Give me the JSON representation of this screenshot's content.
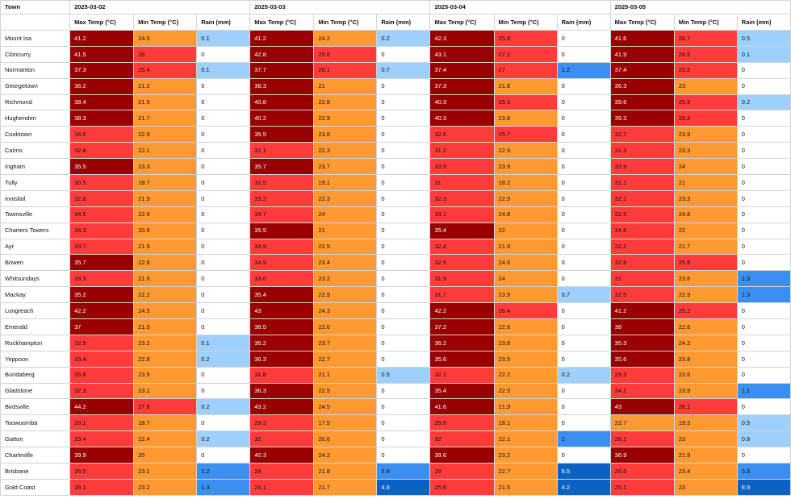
{
  "table": {
    "town_header": "Town",
    "dates": [
      "2025-03-02",
      "2025-03-03",
      "2025-03-04",
      "2025-03-05"
    ],
    "metrics": [
      "Max Temp (°C)",
      "Min Temp (°C)",
      "Rain (mm)"
    ],
    "colors": {
      "very_hot": "#990000",
      "hot": "#ff3b3b",
      "warm": "#ff9a33",
      "mild": "#ffffff",
      "rain_none": "#ffffff",
      "rain_light": "#9fd0fb",
      "rain_moderate": "#3b8ff0",
      "rain_heavy": "#0b61c4"
    },
    "rows": [
      {
        "town": "Mount Isa",
        "cells": [
          "41.2",
          "24.5",
          "0.1",
          "41.2",
          "24.2",
          "0.2",
          "42.3",
          "25.8",
          "0",
          "41.6",
          "26.7",
          "0.5"
        ]
      },
      {
        "town": "Cloncurry",
        "cells": [
          "41.5",
          "26",
          "0",
          "42.8",
          "25.6",
          "0",
          "43.1",
          "27.2",
          "0",
          "41.9",
          "26.5",
          "0.1"
        ]
      },
      {
        "town": "Normanton",
        "cells": [
          "37.3",
          "25.4",
          "0.1",
          "37.7",
          "26.1",
          "0.7",
          "37.4",
          "27",
          "1.2",
          "37.4",
          "25.5",
          "0"
        ]
      },
      {
        "town": "Georgetown",
        "cells": [
          "36.2",
          "21.2",
          "0",
          "38.3",
          "21",
          "0",
          "37.3",
          "21.8",
          "0",
          "36.3",
          "23",
          "0"
        ]
      },
      {
        "town": "Richmond",
        "cells": [
          "38.4",
          "21.5",
          "0",
          "40.8",
          "22.8",
          "0",
          "40.3",
          "25.3",
          "0",
          "39.6",
          "25.9",
          "0.2"
        ]
      },
      {
        "town": "Hughenden",
        "cells": [
          "38.3",
          "21.7",
          "0",
          "40.2",
          "22.9",
          "0",
          "40.3",
          "23.8",
          "0",
          "39.3",
          "26.4",
          "0"
        ]
      },
      {
        "town": "Cooktown",
        "cells": [
          "34.6",
          "22.9",
          "0",
          "35.5",
          "23.8",
          "0",
          "32.6",
          "25.7",
          "0",
          "32.7",
          "23.9",
          "0"
        ]
      },
      {
        "town": "Cairns",
        "cells": [
          "32.8",
          "22.1",
          "0",
          "32.1",
          "22.3",
          "0",
          "31.2",
          "22.9",
          "0",
          "31.3",
          "23.3",
          "0"
        ]
      },
      {
        "town": "Ingham",
        "cells": [
          "35.5",
          "23.3",
          "0",
          "35.7",
          "23.7",
          "0",
          "33.9",
          "23.9",
          "0",
          "33.9",
          "24",
          "0"
        ]
      },
      {
        "town": "Tully",
        "cells": [
          "30.5",
          "18.7",
          "0",
          "32.5",
          "19.1",
          "0",
          "31",
          "18.2",
          "0",
          "31.1",
          "21",
          "0"
        ]
      },
      {
        "town": "Innisfail",
        "cells": [
          "32.8",
          "21.9",
          "0",
          "33.2",
          "22.3",
          "0",
          "32.3",
          "22.9",
          "0",
          "32.1",
          "23.3",
          "0"
        ]
      },
      {
        "town": "Townsville",
        "cells": [
          "34.5",
          "22.9",
          "0",
          "34.7",
          "24",
          "0",
          "33.1",
          "24.8",
          "0",
          "32.5",
          "24.8",
          "0"
        ]
      },
      {
        "town": "Charters Towers",
        "cells": [
          "34.3",
          "20.9",
          "0",
          "35.9",
          "21",
          "0",
          "35.4",
          "22",
          "0",
          "34.8",
          "22",
          "0"
        ]
      },
      {
        "town": "Ayr",
        "cells": [
          "33.7",
          "21.9",
          "0",
          "34.9",
          "22.5",
          "0",
          "32.4",
          "21.9",
          "0",
          "32.2",
          "21.7",
          "0"
        ]
      },
      {
        "town": "Bowen",
        "cells": [
          "35.7",
          "22.6",
          "0",
          "34.9",
          "23.4",
          "0",
          "32.9",
          "24.6",
          "0",
          "32.8",
          "25.6",
          "0"
        ]
      },
      {
        "town": "Whitsundays",
        "cells": [
          "33.3",
          "21.6",
          "0",
          "33.6",
          "23.2",
          "0",
          "31.9",
          "24",
          "0",
          "31",
          "23.6",
          "1.3"
        ]
      },
      {
        "town": "Mackay",
        "cells": [
          "35.2",
          "22.2",
          "0",
          "35.4",
          "22.9",
          "0",
          "31.7",
          "23.9",
          "0.7",
          "32.5",
          "22.9",
          "1.3"
        ]
      },
      {
        "town": "Longreach",
        "cells": [
          "42.2",
          "24.5",
          "0",
          "43",
          "24.3",
          "0",
          "42.2",
          "26.4",
          "0",
          "41.2",
          "25.2",
          "0"
        ]
      },
      {
        "town": "Emerald",
        "cells": [
          "37",
          "21.5",
          "0",
          "38.5",
          "22.6",
          "0",
          "37.2",
          "22.6",
          "0",
          "38",
          "22.6",
          "0"
        ]
      },
      {
        "town": "Rockhampton",
        "cells": [
          "32.9",
          "23.2",
          "0.1",
          "36.2",
          "23.7",
          "0",
          "36.2",
          "23.8",
          "0",
          "35.3",
          "24.2",
          "0"
        ]
      },
      {
        "town": "Yeppoon",
        "cells": [
          "33.4",
          "22.8",
          "0.2",
          "36.3",
          "22.7",
          "0",
          "35.6",
          "23.5",
          "0",
          "35.6",
          "23.8",
          "0"
        ]
      },
      {
        "town": "Bundaberg",
        "cells": [
          "26.8",
          "23.5",
          "0",
          "31.8",
          "21.1",
          "0.5",
          "32.1",
          "22.2",
          "0.2",
          "29.3",
          "23.6",
          "0"
        ]
      },
      {
        "town": "Gladstone",
        "cells": [
          "32.3",
          "23.1",
          "0",
          "36.3",
          "22.5",
          "0",
          "35.4",
          "22.5",
          "0",
          "34.2",
          "23.9",
          "1.1"
        ]
      },
      {
        "town": "Birdsville",
        "cells": [
          "44.2",
          "27.8",
          "0.2",
          "43.2",
          "24.5",
          "0",
          "41.6",
          "21.9",
          "0",
          "43",
          "26.1",
          "0"
        ]
      },
      {
        "town": "Toowoomba",
        "cells": [
          "28.1",
          "18.7",
          "0",
          "29.3",
          "17.5",
          "0",
          "29.8",
          "18.1",
          "0",
          "23.7",
          "19.3",
          "0.5"
        ]
      },
      {
        "town": "Gatton",
        "cells": [
          "29.4",
          "22.4",
          "0.2",
          "32",
          "20.6",
          "0",
          "32",
          "22.1",
          "1",
          "28.1",
          "23",
          "0.8"
        ]
      },
      {
        "town": "Charleville",
        "cells": [
          "39.9",
          "20",
          "0",
          "40.3",
          "24.2",
          "0",
          "39.6",
          "23.2",
          "0",
          "36.9",
          "21.9",
          "0"
        ]
      },
      {
        "town": "Brisbane",
        "cells": [
          "26.5",
          "23.1",
          "1.2",
          "28",
          "21.8",
          "3.6",
          "28",
          "22.7",
          "6.5",
          "26.5",
          "23.4",
          "3.8"
        ]
      },
      {
        "town": "Gold Coast",
        "cells": [
          "26.1",
          "23.2",
          "1.3",
          "26.1",
          "21.7",
          "4.9",
          "25.6",
          "21.5",
          "4.2",
          "25.1",
          "23",
          "8.9"
        ]
      }
    ]
  }
}
